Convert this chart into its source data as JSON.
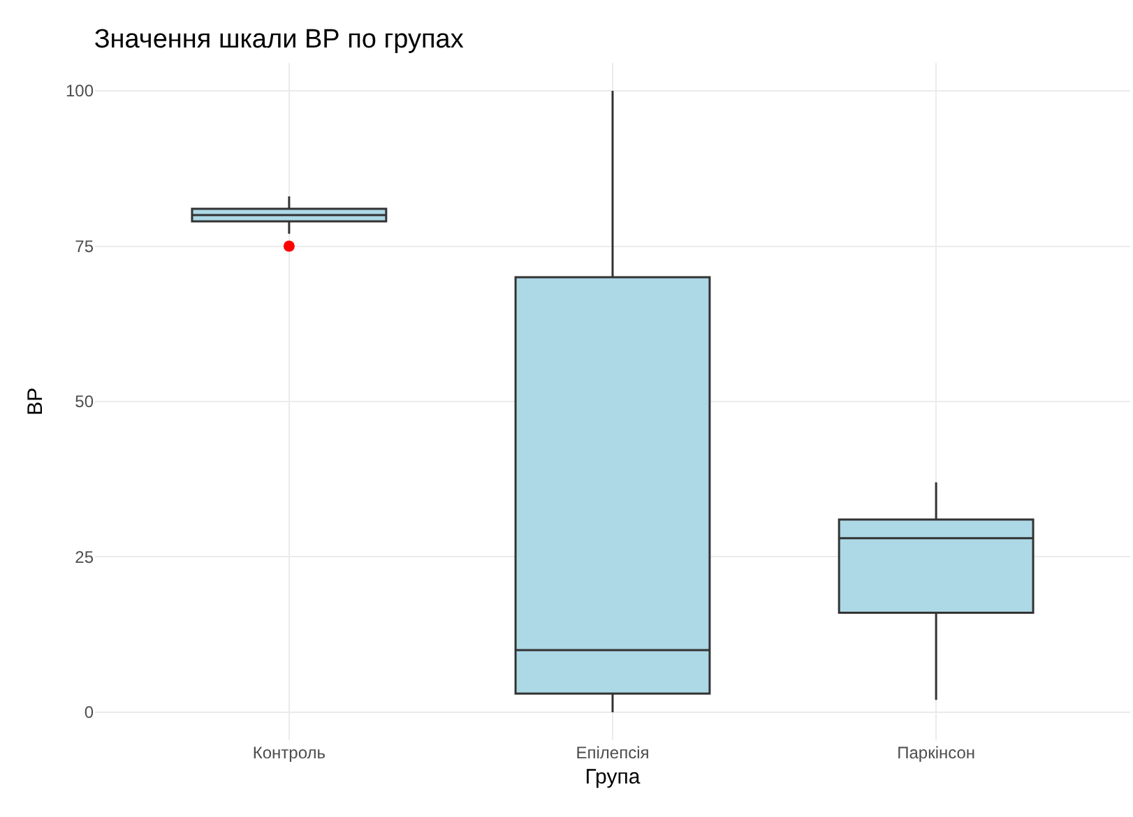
{
  "chart_data": {
    "type": "box",
    "title": "Значення шкали ВР по групах",
    "xlabel": "Група",
    "ylabel": "ВР",
    "categories": [
      "Контроль",
      "Епілепсія",
      "Паркінсон"
    ],
    "series": [
      {
        "color": "#add8e6",
        "boxes": [
          {
            "low": 77,
            "q1": 79,
            "median": 80,
            "q3": 81,
            "high": 83
          },
          {
            "low": 0,
            "q1": 3,
            "median": 10,
            "q3": 70,
            "high": 100
          },
          {
            "low": 2,
            "q1": 16,
            "median": 28,
            "q3": 31,
            "high": 37
          }
        ]
      },
      {
        "type": "scatter",
        "x": [
          "Контроль"
        ],
        "values": [
          75
        ],
        "color": "#ff0000"
      }
    ],
    "ylim": [
      -4.5,
      104.5
    ],
    "yticks": [
      0,
      25,
      50,
      75,
      100
    ],
    "grid": true,
    "marker": "circle"
  }
}
